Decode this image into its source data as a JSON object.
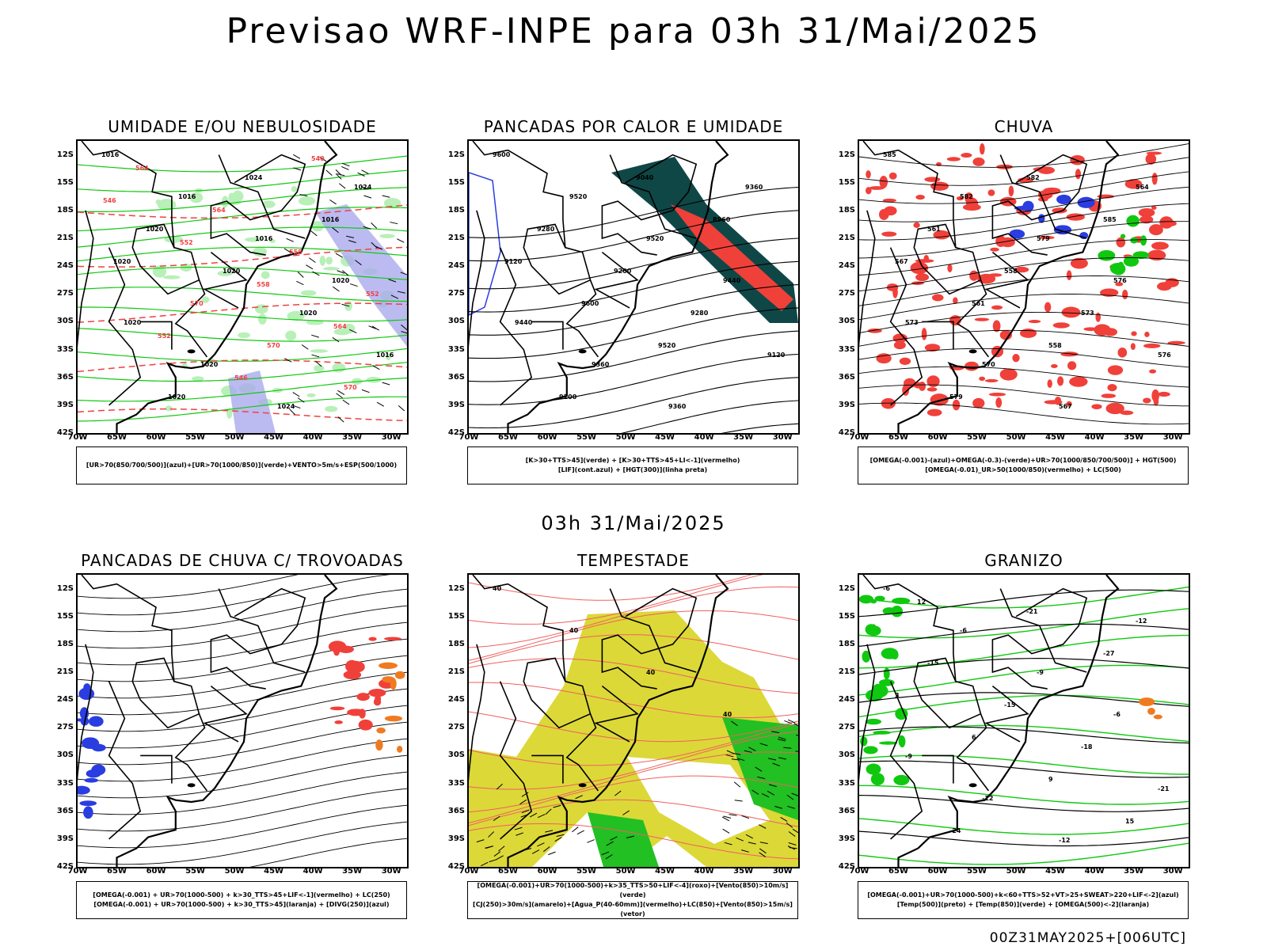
{
  "title": "Previsao WRF-INPE  para 03h 31/Mai/2025",
  "subtitle": "03h 31/Mai/2025",
  "footer": "00Z31MAY2025+[006UTC]",
  "lat_labels": [
    "12S",
    "15S",
    "18S",
    "21S",
    "24S",
    "27S",
    "30S",
    "33S",
    "36S",
    "39S",
    "42S"
  ],
  "lon_labels": [
    "70W",
    "65W",
    "60W",
    "55W",
    "50W",
    "45W",
    "40W",
    "35W",
    "30W"
  ],
  "panels": [
    {
      "title": "UMIDADE E/OU NEBULOSIDADE",
      "legend": [
        "[UR>70(850/700/500)](azul)+[UR>70(1000/850)](verde)+VENTO>5m/s+ESP(500/1000)"
      ],
      "contour_labels": [
        "1016",
        "1016",
        "1016",
        "1020",
        "1020",
        "1020",
        "1024",
        "1024",
        "1020",
        "1020",
        "1020",
        "1016",
        "1020",
        "1024",
        "1016",
        "1020",
        "570",
        "570",
        "570",
        "564",
        "564",
        "558",
        "552",
        "552",
        "546",
        "540",
        "546",
        "552",
        "558",
        "564"
      ]
    },
    {
      "title": "PANCADAS POR CALOR E UMIDADE",
      "legend": [
        "[K>30+TTS>45](verde) + [K>30+TTS>45+LI<-1](vermelho)",
        "[LIF](cont.azul) + [HGT(300)](linha preta)"
      ],
      "contour_labels": [
        "9600",
        "9520",
        "9520",
        "9440",
        "9440",
        "9360",
        "9360",
        "9360",
        "9280",
        "9200",
        "9280",
        "9120",
        "9200",
        "9040",
        "8960",
        "9120",
        "9600",
        "9520"
      ]
    },
    {
      "title": "CHUVA",
      "legend": [
        "[OMEGA(-0.001)-(azul)+OMEGA(-0.3)-(verde)+UR>70(1000/850/700/500)] + HGT(500)",
        "[OMEGA(-0.01)_UR>50(1000/850)(vermelho) + LC(500)"
      ],
      "contour_labels": [
        "585",
        "582",
        "579",
        "576",
        "573",
        "570",
        "567",
        "564",
        "561",
        "558",
        "573",
        "576",
        "579",
        "582",
        "585",
        "567",
        "561",
        "558"
      ]
    },
    {
      "title": "PANCADAS DE CHUVA C/ TROVOADAS",
      "legend": [
        "[OMEGA(-0.001) + UR>70(1000-500) + k>30_TTS>45+LIF<-1](vermelho) + LC(250)",
        "[OMEGA(-0.001) + UR>70(1000-500) + k>30_TTS>45](laranja) + [DIVG(250)](azul)"
      ],
      "contour_labels": []
    },
    {
      "title": "TEMPESTADE",
      "legend": [
        "[OMEGA(-0.001)+UR>70(1000-500)+k>35_TTS>50+LIF<-4](roxo)+[Vento(850)>10m/s](verde)",
        "[CJ(250)>30m/s](amarelo)+[Agua_P(40-60mm)](vermelho)+LC(850)+[Vento(850)>15m/s](vetor)"
      ],
      "contour_labels": [
        "40",
        "40",
        "40",
        "40"
      ]
    },
    {
      "title": "GRANIZO",
      "legend": [
        "[OMEGA(-0.001)+UR>70(1000-500)+k<60+TTS>52+VT>25+SWEAT>220+LIF<-2](azul)",
        "[Temp(500)](preto) + [Temp(850)](verde) + [OMEGA(500)<-2](laranja)"
      ],
      "contour_labels": [
        "-6",
        "-6",
        "-9",
        "-6",
        "-9",
        "-12",
        "-12",
        "-12",
        "-15",
        "-15",
        "-18",
        "-21",
        "-24",
        "-21",
        "-27",
        "3",
        "6",
        "9",
        "15",
        "12"
      ]
    }
  ],
  "colors": {
    "land": "#000000",
    "green": "#10c810",
    "blue": "#2a3de0",
    "lavender": "#aaaaee",
    "red": "#f0403a",
    "darkteal": "#0f4747",
    "yellow": "#dcd838",
    "orange": "#f07a20",
    "contour_red": "#f04040"
  }
}
